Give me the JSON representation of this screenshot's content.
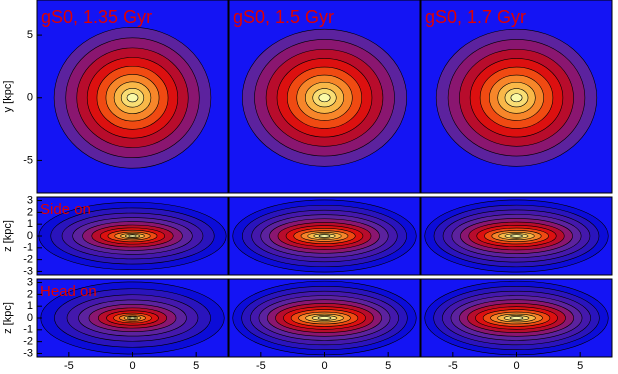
{
  "chart_data": [
    {
      "type": "contour",
      "title": "gS0, 1.35 Gyr",
      "ylabel": "y [kpc]",
      "xlim": [
        -7.5,
        7.5
      ],
      "ylim": [
        -7.6,
        7.8
      ],
      "yticks": [
        -5,
        0,
        5
      ]
    },
    {
      "type": "contour",
      "title": "gS0, 1.5 Gyr",
      "xlim": [
        -7.5,
        7.5
      ],
      "ylim": [
        -7.6,
        7.8
      ]
    },
    {
      "type": "contour",
      "title": "gS0, 1.7 Gyr",
      "xlim": [
        -7.5,
        7.5
      ],
      "ylim": [
        -7.6,
        7.8
      ]
    },
    {
      "type": "contour",
      "annotation": "Side on",
      "ylabel": "z [kpc]",
      "xlim": [
        -7.5,
        7.5
      ],
      "ylim": [
        -3.3,
        3.3
      ],
      "yticks": [
        -3,
        -2,
        -1,
        0,
        1,
        2,
        3
      ]
    },
    {
      "type": "contour",
      "xlim": [
        -7.5,
        7.5
      ],
      "ylim": [
        -3.3,
        3.3
      ]
    },
    {
      "type": "contour",
      "xlim": [
        -7.5,
        7.5
      ],
      "ylim": [
        -3.3,
        3.3
      ]
    },
    {
      "type": "contour",
      "annotation": "Head on",
      "ylabel": "z [kpc]",
      "xlim": [
        -7.5,
        7.5
      ],
      "ylim": [
        -3.3,
        3.3
      ],
      "yticks": [
        -3,
        -2,
        -1,
        0,
        1,
        2,
        3
      ],
      "xticks": [
        -5,
        0,
        5
      ]
    },
    {
      "type": "contour",
      "xlim": [
        -7.5,
        7.5
      ],
      "ylim": [
        -3.3,
        3.3
      ],
      "xticks": [
        -5,
        0,
        5
      ]
    },
    {
      "type": "contour",
      "xlim": [
        -7.5,
        7.5
      ],
      "ylim": [
        -3.3,
        3.3
      ],
      "xticks": [
        -5,
        0,
        5
      ]
    }
  ]
}
